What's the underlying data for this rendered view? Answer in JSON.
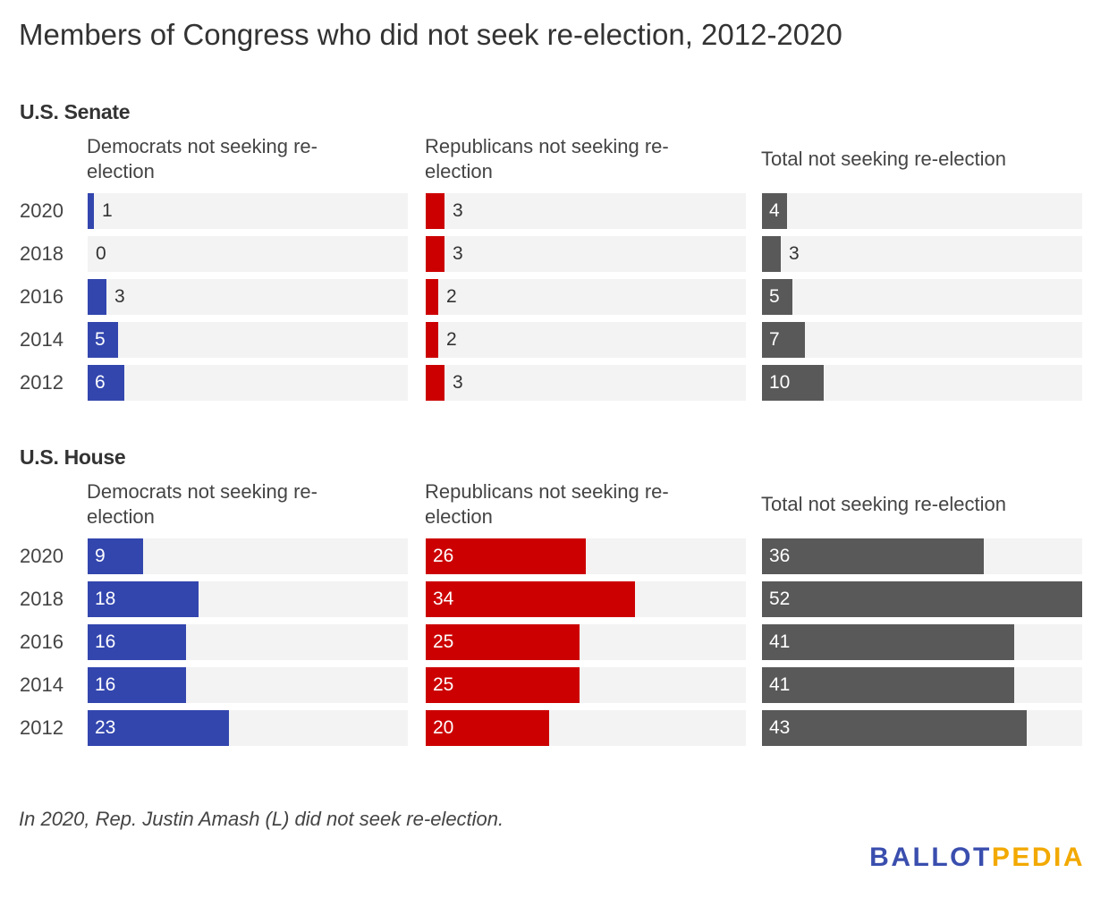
{
  "title": "Members of Congress who did not seek re-election, 2012-2020",
  "note": "In 2020, Rep. Justin Amash (L) did not seek re-election.",
  "logo": {
    "part1": "BALLOT",
    "part2": "PEDIA"
  },
  "colors": {
    "dem": "#3346ae",
    "rep": "#cc0000",
    "total": "#595959",
    "track": "#f3f3f3"
  },
  "chart_data": {
    "type": "bar",
    "orientation": "horizontal",
    "categories": [
      "2020",
      "2018",
      "2016",
      "2014",
      "2012"
    ],
    "xlim": [
      0,
      52
    ],
    "panels": [
      {
        "name": "U.S. Senate",
        "series": [
          {
            "name": "Democrats not seeking re-election",
            "values": [
              1,
              0,
              3,
              5,
              6
            ]
          },
          {
            "name": "Republicans not seeking re-election",
            "values": [
              3,
              3,
              2,
              2,
              3
            ]
          },
          {
            "name": "Total not seeking re-election",
            "values": [
              4,
              3,
              5,
              7,
              10
            ]
          }
        ]
      },
      {
        "name": "U.S. House",
        "series": [
          {
            "name": "Democrats not seeking re-election",
            "values": [
              9,
              18,
              16,
              16,
              23
            ]
          },
          {
            "name": "Republicans not seeking re-election",
            "values": [
              26,
              34,
              25,
              25,
              20
            ]
          },
          {
            "name": "Total not seeking re-election",
            "values": [
              36,
              52,
              41,
              41,
              43
            ]
          }
        ]
      }
    ]
  }
}
